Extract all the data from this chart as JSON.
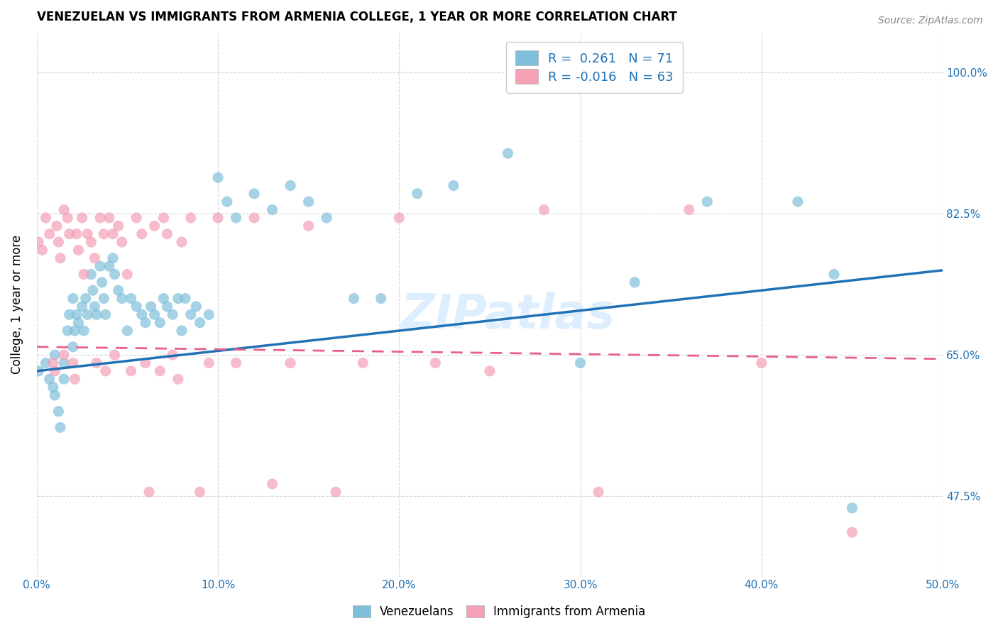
{
  "title": "VENEZUELAN VS IMMIGRANTS FROM ARMENIA COLLEGE, 1 YEAR OR MORE CORRELATION CHART",
  "source": "Source: ZipAtlas.com",
  "xlabel_ticks": [
    "0.0%",
    "10.0%",
    "20.0%",
    "30.0%",
    "40.0%",
    "50.0%"
  ],
  "ylabel_label": "College, 1 year or more",
  "legend_label_venezuelans": "Venezuelans",
  "legend_label_armenia": "Immigrants from Armenia",
  "r_venezuelan": "0.261",
  "n_venezuelan": "71",
  "r_armenia": "-0.016",
  "n_armenia": "63",
  "blue_color": "#7fbfdb",
  "pink_color": "#f4a0b5",
  "blue_line_color": "#2171b5",
  "pink_line_color": "#e8608a",
  "background_color": "#ffffff",
  "x_min": 0.0,
  "x_max": 0.5,
  "y_min": 0.375,
  "y_max": 1.05,
  "venezuelan_x": [
    0.001,
    0.005,
    0.007,
    0.009,
    0.01,
    0.01,
    0.012,
    0.013,
    0.015,
    0.015,
    0.017,
    0.018,
    0.02,
    0.02,
    0.021,
    0.022,
    0.023,
    0.025,
    0.026,
    0.027,
    0.028,
    0.03,
    0.031,
    0.032,
    0.033,
    0.035,
    0.036,
    0.037,
    0.038,
    0.04,
    0.042,
    0.043,
    0.045,
    0.047,
    0.05,
    0.052,
    0.055,
    0.058,
    0.06,
    0.063,
    0.065,
    0.068,
    0.07,
    0.072,
    0.075,
    0.078,
    0.08,
    0.082,
    0.085,
    0.088,
    0.09,
    0.095,
    0.1,
    0.105,
    0.11,
    0.12,
    0.13,
    0.14,
    0.15,
    0.16,
    0.175,
    0.19,
    0.21,
    0.23,
    0.26,
    0.3,
    0.33,
    0.37,
    0.42,
    0.44,
    0.45
  ],
  "venezuelan_y": [
    0.63,
    0.64,
    0.62,
    0.61,
    0.65,
    0.6,
    0.58,
    0.56,
    0.64,
    0.62,
    0.68,
    0.7,
    0.66,
    0.72,
    0.68,
    0.7,
    0.69,
    0.71,
    0.68,
    0.72,
    0.7,
    0.75,
    0.73,
    0.71,
    0.7,
    0.76,
    0.74,
    0.72,
    0.7,
    0.76,
    0.77,
    0.75,
    0.73,
    0.72,
    0.68,
    0.72,
    0.71,
    0.7,
    0.69,
    0.71,
    0.7,
    0.69,
    0.72,
    0.71,
    0.7,
    0.72,
    0.68,
    0.72,
    0.7,
    0.71,
    0.69,
    0.7,
    0.87,
    0.84,
    0.82,
    0.85,
    0.83,
    0.86,
    0.84,
    0.82,
    0.72,
    0.72,
    0.85,
    0.86,
    0.9,
    0.64,
    0.74,
    0.84,
    0.84,
    0.75,
    0.46
  ],
  "armenia_x": [
    0.001,
    0.003,
    0.005,
    0.007,
    0.009,
    0.01,
    0.011,
    0.012,
    0.013,
    0.015,
    0.015,
    0.017,
    0.018,
    0.02,
    0.021,
    0.022,
    0.023,
    0.025,
    0.026,
    0.028,
    0.03,
    0.032,
    0.033,
    0.035,
    0.037,
    0.038,
    0.04,
    0.042,
    0.043,
    0.045,
    0.047,
    0.05,
    0.052,
    0.055,
    0.058,
    0.06,
    0.062,
    0.065,
    0.068,
    0.07,
    0.072,
    0.075,
    0.078,
    0.08,
    0.085,
    0.09,
    0.095,
    0.1,
    0.11,
    0.12,
    0.13,
    0.14,
    0.15,
    0.165,
    0.18,
    0.2,
    0.22,
    0.25,
    0.28,
    0.31,
    0.36,
    0.4,
    0.45
  ],
  "armenia_y": [
    0.79,
    0.78,
    0.82,
    0.8,
    0.64,
    0.63,
    0.81,
    0.79,
    0.77,
    0.83,
    0.65,
    0.82,
    0.8,
    0.64,
    0.62,
    0.8,
    0.78,
    0.82,
    0.75,
    0.8,
    0.79,
    0.77,
    0.64,
    0.82,
    0.8,
    0.63,
    0.82,
    0.8,
    0.65,
    0.81,
    0.79,
    0.75,
    0.63,
    0.82,
    0.8,
    0.64,
    0.48,
    0.81,
    0.63,
    0.82,
    0.8,
    0.65,
    0.62,
    0.79,
    0.82,
    0.48,
    0.64,
    0.82,
    0.64,
    0.82,
    0.49,
    0.64,
    0.81,
    0.48,
    0.64,
    0.82,
    0.64,
    0.63,
    0.83,
    0.48,
    0.83,
    0.64,
    0.43
  ],
  "blue_trend_x0": 0.0,
  "blue_trend_x1": 0.5,
  "blue_trend_y0": 0.63,
  "blue_trend_y1": 0.755,
  "pink_trend_x0": 0.0,
  "pink_trend_x1": 0.5,
  "pink_trend_y0": 0.66,
  "pink_trend_y1": 0.645
}
